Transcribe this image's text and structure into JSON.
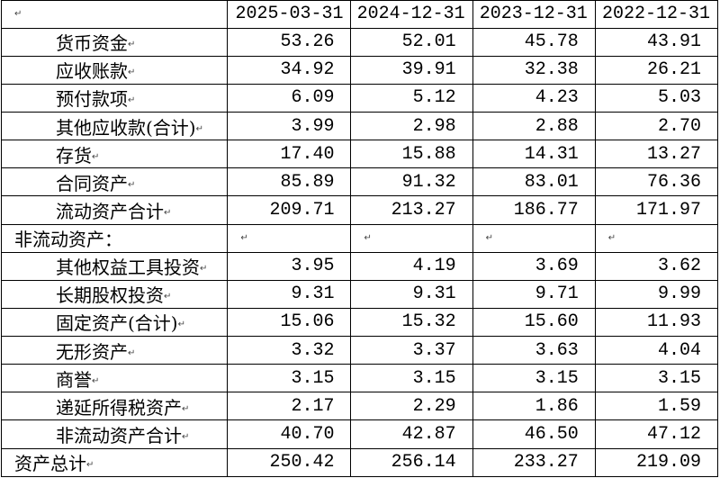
{
  "table": {
    "header": [
      "2025-03-31",
      "2024-12-31",
      "2023-12-31",
      "2022-12-31"
    ],
    "rows": [
      {
        "label": "货币资金",
        "values": [
          "53.26",
          "52.01",
          "45.78",
          "43.91"
        ]
      },
      {
        "label": "应收账款",
        "values": [
          "34.92",
          "39.91",
          "32.38",
          "26.21"
        ]
      },
      {
        "label": "预付款项",
        "values": [
          "6.09",
          "5.12",
          "4.23",
          "5.03"
        ]
      },
      {
        "label": "其他应收款(合计)",
        "values": [
          "3.99",
          "2.98",
          "2.88",
          "2.70"
        ]
      },
      {
        "label": "存货",
        "values": [
          "17.40",
          "15.88",
          "14.31",
          "13.27"
        ]
      },
      {
        "label": "合同资产",
        "values": [
          "85.89",
          "91.32",
          "83.01",
          "76.36"
        ]
      },
      {
        "label": "流动资产合计",
        "values": [
          "209.71",
          "213.27",
          "186.77",
          "171.97"
        ]
      },
      {
        "label": "非流动资产："
      },
      {
        "label": "其他权益工具投资",
        "values": [
          "3.95",
          "4.19",
          "3.69",
          "3.62"
        ]
      },
      {
        "label": "长期股权投资",
        "values": [
          "9.31",
          "9.31",
          "9.71",
          "9.99"
        ]
      },
      {
        "label": "固定资产(合计)",
        "values": [
          "15.06",
          "15.32",
          "15.60",
          "11.93"
        ]
      },
      {
        "label": "无形资产",
        "values": [
          "3.32",
          "3.37",
          "3.63",
          "4.04"
        ]
      },
      {
        "label": "商誉",
        "values": [
          "3.15",
          "3.15",
          "3.15",
          "3.15"
        ]
      },
      {
        "label": "递延所得税资产",
        "values": [
          "2.17",
          "2.29",
          "1.86",
          "1.59"
        ]
      },
      {
        "label": "非流动资产合计",
        "values": [
          "40.70",
          "42.87",
          "46.50",
          "47.12"
        ]
      },
      {
        "label": "资产总计",
        "values": [
          "250.42",
          "256.14",
          "233.27",
          "219.09"
        ]
      }
    ]
  }
}
